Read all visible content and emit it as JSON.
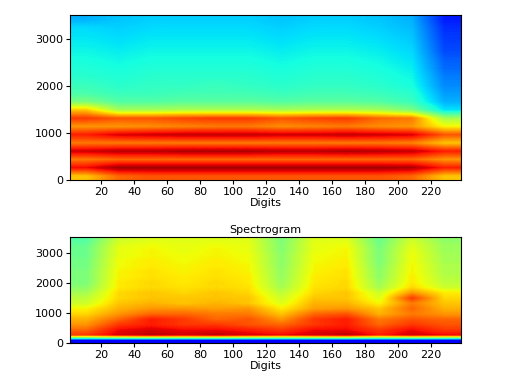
{
  "chart_data": [
    {
      "type": "heatmap",
      "x_label": "Digits",
      "xlim": [
        1,
        238
      ],
      "xticks": [
        20,
        40,
        60,
        80,
        100,
        120,
        140,
        160,
        180,
        200,
        220
      ],
      "ylim": [
        0,
        3500
      ],
      "yticks": [
        0,
        1000,
        2000,
        3000
      ],
      "color_range": [
        0,
        1
      ],
      "cells": [
        [
          0.7,
          0.8,
          0.82,
          0.82,
          0.82,
          0.82,
          0.82,
          0.82,
          0.82,
          0.82,
          0.8,
          0.7
        ],
        [
          0.9,
          0.97,
          0.97,
          0.97,
          0.97,
          0.97,
          0.97,
          0.97,
          0.97,
          0.97,
          0.96,
          0.88
        ],
        [
          0.78,
          0.8,
          0.8,
          0.8,
          0.8,
          0.8,
          0.8,
          0.8,
          0.8,
          0.8,
          0.8,
          0.75
        ],
        [
          0.93,
          0.95,
          0.95,
          0.96,
          0.96,
          0.96,
          0.95,
          0.95,
          0.96,
          0.95,
          0.94,
          0.88
        ],
        [
          0.78,
          0.78,
          0.78,
          0.78,
          0.78,
          0.78,
          0.78,
          0.78,
          0.78,
          0.78,
          0.77,
          0.7
        ],
        [
          0.88,
          0.92,
          0.93,
          0.94,
          0.94,
          0.94,
          0.93,
          0.93,
          0.94,
          0.93,
          0.92,
          0.82
        ],
        [
          0.75,
          0.75,
          0.76,
          0.77,
          0.78,
          0.78,
          0.76,
          0.77,
          0.78,
          0.76,
          0.75,
          0.65
        ],
        [
          0.85,
          0.82,
          0.82,
          0.84,
          0.85,
          0.85,
          0.82,
          0.84,
          0.85,
          0.8,
          0.78,
          0.55
        ],
        [
          0.7,
          0.55,
          0.55,
          0.56,
          0.56,
          0.56,
          0.55,
          0.56,
          0.56,
          0.55,
          0.5,
          0.35
        ],
        [
          0.5,
          0.45,
          0.45,
          0.46,
          0.46,
          0.46,
          0.45,
          0.46,
          0.46,
          0.45,
          0.42,
          0.3
        ],
        [
          0.44,
          0.42,
          0.42,
          0.43,
          0.43,
          0.43,
          0.42,
          0.43,
          0.43,
          0.42,
          0.4,
          0.28
        ],
        [
          0.42,
          0.4,
          0.41,
          0.41,
          0.42,
          0.41,
          0.4,
          0.41,
          0.41,
          0.4,
          0.38,
          0.26
        ],
        [
          0.4,
          0.39,
          0.4,
          0.4,
          0.4,
          0.4,
          0.39,
          0.4,
          0.4,
          0.39,
          0.37,
          0.25
        ],
        [
          0.39,
          0.38,
          0.39,
          0.39,
          0.39,
          0.39,
          0.38,
          0.39,
          0.39,
          0.38,
          0.36,
          0.23
        ],
        [
          0.38,
          0.37,
          0.38,
          0.38,
          0.38,
          0.38,
          0.37,
          0.38,
          0.38,
          0.37,
          0.35,
          0.22
        ],
        [
          0.37,
          0.36,
          0.37,
          0.37,
          0.37,
          0.37,
          0.36,
          0.37,
          0.37,
          0.36,
          0.34,
          0.2
        ],
        [
          0.36,
          0.35,
          0.36,
          0.36,
          0.36,
          0.36,
          0.35,
          0.36,
          0.36,
          0.35,
          0.33,
          0.19
        ],
        [
          0.35,
          0.34,
          0.35,
          0.35,
          0.35,
          0.35,
          0.34,
          0.35,
          0.35,
          0.34,
          0.32,
          0.18
        ],
        [
          0.34,
          0.33,
          0.34,
          0.34,
          0.34,
          0.34,
          0.33,
          0.34,
          0.34,
          0.33,
          0.31,
          0.17
        ],
        [
          0.3,
          0.32,
          0.33,
          0.33,
          0.33,
          0.33,
          0.32,
          0.33,
          0.33,
          0.32,
          0.3,
          0.15
        ]
      ]
    },
    {
      "type": "heatmap",
      "title": "Spectrogram",
      "x_label": "Digits",
      "xlim": [
        1,
        238
      ],
      "xticks": [
        20,
        40,
        60,
        80,
        100,
        120,
        140,
        160,
        180,
        200,
        220
      ],
      "ylim": [
        0,
        3500
      ],
      "yticks": [
        0,
        1000,
        2000,
        3000
      ],
      "color_range": [
        0,
        1
      ],
      "cells": [
        [
          0.12,
          0.12,
          0.12,
          0.12,
          0.12,
          0.12,
          0.12,
          0.12,
          0.12,
          0.12,
          0.12,
          0.12
        ],
        [
          0.85,
          0.92,
          0.95,
          0.93,
          0.95,
          0.92,
          0.9,
          0.93,
          0.95,
          0.88,
          0.93,
          0.9
        ],
        [
          0.8,
          0.9,
          0.92,
          0.9,
          0.9,
          0.88,
          0.85,
          0.9,
          0.9,
          0.85,
          0.9,
          0.85
        ],
        [
          0.75,
          0.85,
          0.88,
          0.85,
          0.85,
          0.82,
          0.8,
          0.85,
          0.88,
          0.8,
          0.85,
          0.82
        ],
        [
          0.72,
          0.8,
          0.88,
          0.85,
          0.8,
          0.82,
          0.75,
          0.85,
          0.88,
          0.78,
          0.82,
          0.8
        ],
        [
          0.68,
          0.75,
          0.8,
          0.8,
          0.78,
          0.78,
          0.7,
          0.8,
          0.82,
          0.72,
          0.78,
          0.75
        ],
        [
          0.65,
          0.72,
          0.75,
          0.75,
          0.74,
          0.75,
          0.66,
          0.74,
          0.75,
          0.7,
          0.8,
          0.72
        ],
        [
          0.6,
          0.7,
          0.72,
          0.7,
          0.72,
          0.7,
          0.62,
          0.72,
          0.72,
          0.65,
          0.78,
          0.7
        ],
        [
          0.58,
          0.68,
          0.7,
          0.7,
          0.7,
          0.7,
          0.6,
          0.7,
          0.7,
          0.62,
          0.85,
          0.68
        ],
        [
          0.55,
          0.68,
          0.7,
          0.68,
          0.7,
          0.68,
          0.58,
          0.68,
          0.7,
          0.6,
          0.75,
          0.66
        ],
        [
          0.52,
          0.66,
          0.68,
          0.67,
          0.68,
          0.67,
          0.55,
          0.67,
          0.68,
          0.55,
          0.68,
          0.6
        ],
        [
          0.5,
          0.66,
          0.68,
          0.66,
          0.68,
          0.66,
          0.54,
          0.66,
          0.68,
          0.54,
          0.66,
          0.58
        ],
        [
          0.5,
          0.65,
          0.67,
          0.66,
          0.67,
          0.66,
          0.53,
          0.66,
          0.67,
          0.52,
          0.66,
          0.57
        ],
        [
          0.5,
          0.65,
          0.67,
          0.65,
          0.67,
          0.65,
          0.53,
          0.65,
          0.67,
          0.52,
          0.65,
          0.56
        ],
        [
          0.49,
          0.64,
          0.66,
          0.65,
          0.66,
          0.65,
          0.52,
          0.65,
          0.66,
          0.51,
          0.65,
          0.56
        ],
        [
          0.49,
          0.64,
          0.66,
          0.64,
          0.66,
          0.64,
          0.52,
          0.64,
          0.66,
          0.5,
          0.64,
          0.55
        ],
        [
          0.48,
          0.63,
          0.65,
          0.64,
          0.65,
          0.64,
          0.52,
          0.64,
          0.65,
          0.5,
          0.64,
          0.55
        ],
        [
          0.48,
          0.63,
          0.65,
          0.63,
          0.65,
          0.63,
          0.51,
          0.63,
          0.65,
          0.5,
          0.63,
          0.54
        ],
        [
          0.47,
          0.62,
          0.64,
          0.63,
          0.64,
          0.63,
          0.51,
          0.63,
          0.64,
          0.49,
          0.62,
          0.54
        ],
        [
          0.45,
          0.6,
          0.62,
          0.62,
          0.62,
          0.62,
          0.5,
          0.62,
          0.62,
          0.48,
          0.6,
          0.52
        ]
      ]
    }
  ]
}
